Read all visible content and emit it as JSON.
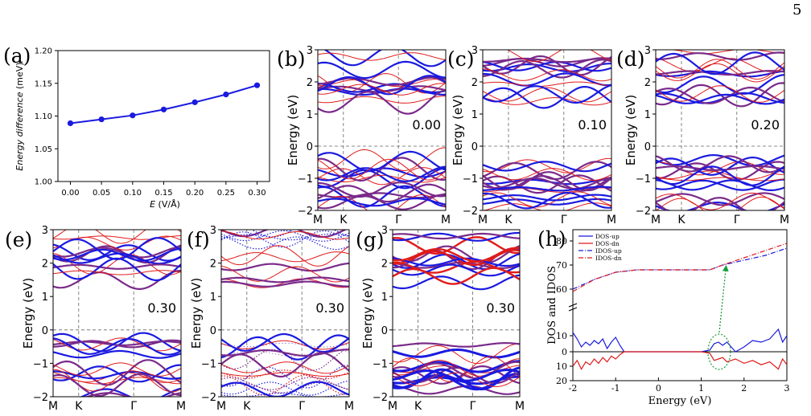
{
  "page_number": "5",
  "colors": {
    "up": "#1a1ae0",
    "dn": "#e01a1a",
    "mix": "#7a2a8a",
    "green": "#1a9a3a"
  },
  "panels": [
    {
      "id": "a",
      "label": "(a)",
      "ylabel": "Energy difference",
      "ylabel_unit": "(meV)",
      "xlabel_var": "E",
      "xlabel_unit": "(V/Å)",
      "yticks": [
        "1.20",
        "1.15",
        "1.10",
        "1.05",
        "1.00"
      ],
      "xticks": [
        "0.00",
        "0.05",
        "0.10",
        "0.15",
        "0.20",
        "0.25",
        "0.30"
      ]
    },
    {
      "id": "b",
      "label": "(b)",
      "field": "0.00"
    },
    {
      "id": "c",
      "label": "(c)",
      "field": "0.10"
    },
    {
      "id": "d",
      "label": "(d)",
      "field": "0.20"
    },
    {
      "id": "e",
      "label": "(e)",
      "field": "0.30"
    },
    {
      "id": "f",
      "label": "(f)",
      "field": "0.30"
    },
    {
      "id": "g",
      "label": "(g)",
      "field": "0.30"
    },
    {
      "id": "h",
      "label": "(h)",
      "ylabel": "DOS and IDOS",
      "xlabel": "Energy (eV)",
      "legend": [
        "DOS-up",
        "DOS-dn",
        "IDOS-up",
        "IDOS-dn"
      ],
      "yticks_top": [
        "80",
        "70",
        "60"
      ],
      "yticks_bottom": [
        "10",
        "0",
        "10",
        "20"
      ],
      "xticks": [
        "-2",
        "-1",
        "0",
        "1",
        "2",
        "3"
      ]
    }
  ],
  "band_axes": {
    "ylabel": "Energy (eV)",
    "yticks": [
      "3",
      "2",
      "1",
      "0",
      "−1",
      "−2"
    ],
    "kpoints": [
      "M",
      "K",
      "Γ",
      "M"
    ]
  },
  "chart_data": [
    {
      "type": "line",
      "panel": "a",
      "title": "",
      "xlabel": "E (V/Å)",
      "ylabel": "Energy difference (meV)",
      "x": [
        0.0,
        0.05,
        0.1,
        0.15,
        0.2,
        0.25,
        0.3
      ],
      "series": [
        {
          "values": [
            1.089,
            1.095,
            1.101,
            1.11,
            1.121,
            1.133,
            1.147
          ]
        }
      ],
      "xlim": [
        -0.02,
        0.32
      ],
      "ylim": [
        1.0,
        1.2
      ],
      "grid": false
    },
    {
      "type": "line",
      "panel": "h",
      "xlabel": "Energy (eV)",
      "ylabel": "DOS and IDOS",
      "xlim": [
        -2,
        3
      ],
      "legend_position": "top-left",
      "series": [
        {
          "name": "IDOS-up",
          "x": [
            -2,
            -1.5,
            -1,
            -0.5,
            0,
            0.5,
            1,
            1.2,
            1.5,
            2,
            2.5,
            3
          ],
          "values": [
            60,
            64,
            67,
            68,
            68,
            68,
            68,
            68,
            70,
            72,
            74,
            77
          ]
        },
        {
          "name": "IDOS-dn",
          "x": [
            -2,
            -1.5,
            -1,
            -0.5,
            0,
            0.5,
            1,
            1.2,
            1.5,
            2,
            2.5,
            3
          ],
          "values": [
            59,
            64,
            67,
            68,
            68,
            68,
            68,
            68,
            70,
            73,
            76,
            79
          ]
        },
        {
          "name": "DOS-up",
          "x": [
            -2,
            -1.9,
            -1.8,
            -1.7,
            -1.6,
            -1.5,
            -1.4,
            -1.3,
            -1.2,
            -1.1,
            -1,
            -0.9,
            -0.8,
            -0.5,
            0,
            1,
            1.2,
            1.3,
            1.4,
            1.5,
            1.6,
            1.8,
            2,
            2.2,
            2.4,
            2.6,
            2.8,
            2.9,
            3
          ],
          "values": [
            12,
            8,
            3,
            6,
            4,
            7,
            5,
            8,
            2,
            6,
            9,
            4,
            0,
            0,
            0,
            0,
            1,
            5,
            6,
            4,
            6,
            0,
            3,
            7,
            6,
            8,
            14,
            6,
            10
          ]
        },
        {
          "name": "DOS-dn",
          "x": [
            -2,
            -1.9,
            -1.8,
            -1.7,
            -1.6,
            -1.5,
            -1.4,
            -1.3,
            -1.2,
            -1.1,
            -1,
            -0.9,
            -0.8,
            -0.5,
            0,
            1,
            1.2,
            1.3,
            1.4,
            1.5,
            1.6,
            1.8,
            2,
            2.2,
            2.4,
            2.6,
            2.8,
            2.9,
            3
          ],
          "values": [
            10,
            6,
            12,
            7,
            9,
            5,
            8,
            4,
            7,
            3,
            5,
            2,
            0,
            0,
            0,
            0,
            1,
            6,
            5,
            4,
            7,
            5,
            8,
            6,
            9,
            7,
            12,
            5,
            9
          ]
        }
      ]
    }
  ]
}
